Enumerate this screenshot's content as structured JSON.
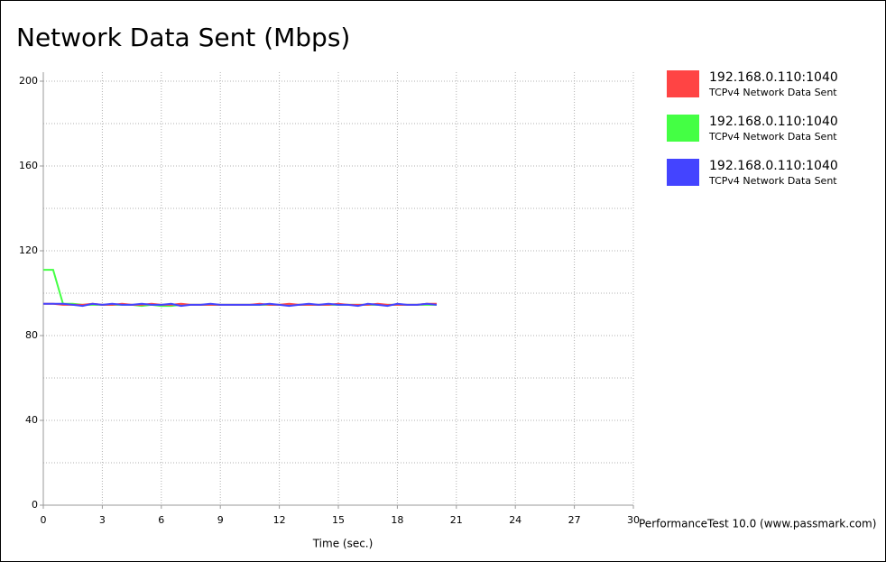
{
  "chart_data": {
    "type": "line",
    "title": "Network Data Sent (Mbps)",
    "xlabel": "Time (sec.)",
    "footer": "PerformanceTest 10.0 (www.passmark.com)",
    "x": [
      0,
      0.5,
      1,
      1.5,
      2,
      2.5,
      3,
      3.5,
      4,
      4.5,
      5,
      5.5,
      6,
      6.5,
      7,
      7.5,
      8,
      8.5,
      9,
      9.5,
      10,
      10.5,
      11,
      11.5,
      12,
      12.5,
      13,
      13.5,
      14,
      14.5,
      15,
      15.5,
      16,
      16.5,
      17,
      17.5,
      18,
      18.5,
      19,
      19.5,
      20
    ],
    "series": [
      {
        "name": "192.168.0.110:1040",
        "description": "TCPv4 Network Data Sent",
        "color": "#ff4444",
        "values": [
          95,
          95,
          94.5,
          94.5,
          94.5,
          95,
          94.5,
          94.5,
          95,
          94.5,
          94.5,
          95,
          94.5,
          94.5,
          95,
          94.5,
          94.5,
          94.5,
          94.5,
          94.5,
          94.5,
          94.5,
          95,
          94.5,
          94.5,
          95,
          94.5,
          94.5,
          94.5,
          94.5,
          95,
          94.5,
          94.5,
          94.5,
          95,
          94.5,
          94.5,
          94.5,
          94.5,
          95,
          95
        ]
      },
      {
        "name": "192.168.0.110:1040",
        "description": "TCPv4 Network Data Sent",
        "color": "#44ff44",
        "values": [
          111,
          111,
          95,
          95,
          94.5,
          94.5,
          94.5,
          94.5,
          94.5,
          94.5,
          94,
          94.5,
          94,
          94,
          94.5,
          94.5,
          94.5,
          94.5,
          94.5,
          94.5,
          94.5,
          94.5,
          94.5,
          94.5,
          94.5,
          94.5,
          94.5,
          94.5,
          94.5,
          94.5,
          94.5,
          94.5,
          94.5,
          94.5,
          94.5,
          94.5,
          94.5,
          94.5,
          94.5,
          94.5,
          94.5
        ]
      },
      {
        "name": "192.168.0.110:1040",
        "description": "TCPv4 Network Data Sent",
        "color": "#4444ff",
        "values": [
          95,
          95,
          95,
          94.5,
          94,
          95,
          94.5,
          95,
          94.5,
          94.5,
          95,
          94.5,
          94.5,
          95,
          94,
          94.5,
          94.5,
          95,
          94.5,
          94.5,
          94.5,
          94.5,
          94.5,
          95,
          94.5,
          94,
          94.5,
          95,
          94.5,
          95,
          94.5,
          94.5,
          94,
          95,
          94.5,
          94,
          95,
          94.5,
          94.5,
          95,
          94.5
        ]
      }
    ],
    "draw_order": [
      1,
      0,
      2
    ],
    "xlim": [
      0,
      30
    ],
    "xticks": [
      0,
      3,
      6,
      9,
      12,
      15,
      18,
      21,
      24,
      27,
      30
    ],
    "ylim": [
      0,
      200
    ],
    "yticks": [
      0,
      40,
      80,
      120,
      160,
      200
    ],
    "ygrid_minor": [
      20,
      60,
      100,
      140,
      180
    ],
    "grid": true
  }
}
